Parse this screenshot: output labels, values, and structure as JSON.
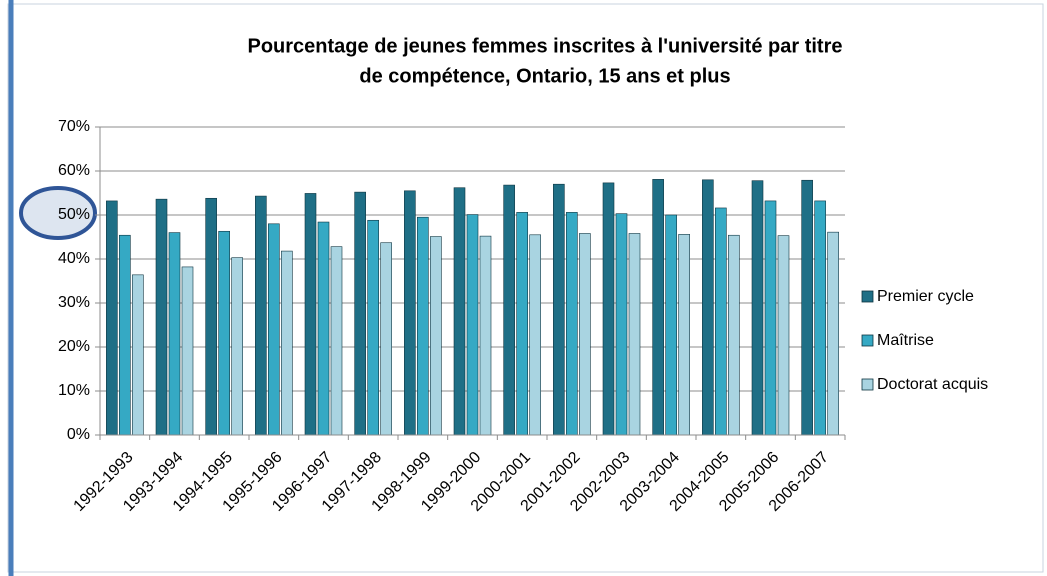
{
  "chart_data": {
    "type": "bar",
    "title_lines": [
      "Pourcentage de jeunes femmes inscrites à l'université par titre",
      "de compétence, Ontario, 15 ans et plus"
    ],
    "categories": [
      "1992-1993",
      "1993-1994",
      "1994-1995",
      "1995-1996",
      "1996-1997",
      "1997-1998",
      "1998-1999",
      "1999-2000",
      "2000-2001",
      "2001-2002",
      "2002-2003",
      "2003-2004",
      "2004-2005",
      "2005-2006",
      "2006-2007"
    ],
    "series": [
      {
        "name": "Premier cycle",
        "color": "#1f6f86",
        "values": [
          53.2,
          53.6,
          53.8,
          54.3,
          54.9,
          55.2,
          55.5,
          56.2,
          56.8,
          57.0,
          57.3,
          58.1,
          58.0,
          57.8,
          57.9
        ]
      },
      {
        "name": "Maîtrise",
        "color": "#35a9c4",
        "values": [
          45.4,
          46.0,
          46.3,
          48.0,
          48.4,
          48.8,
          49.5,
          50.1,
          50.6,
          50.6,
          50.3,
          50.0,
          51.6,
          53.2,
          53.2
        ]
      },
      {
        "name": "Doctorat acquis",
        "color": "#a9d4e1",
        "values": [
          36.4,
          38.2,
          40.3,
          41.8,
          42.8,
          43.7,
          45.1,
          45.2,
          45.5,
          45.8,
          45.8,
          45.6,
          45.4,
          45.3,
          46.1
        ]
      }
    ],
    "ylim": [
      0,
      70
    ],
    "yticks": [
      {
        "value": 0,
        "label": "0%"
      },
      {
        "value": 10,
        "label": "10%"
      },
      {
        "value": 20,
        "label": "20%"
      },
      {
        "value": 30,
        "label": "30%"
      },
      {
        "value": 40,
        "label": "40%"
      },
      {
        "value": 50,
        "label": "50%"
      },
      {
        "value": 60,
        "label": "60%"
      },
      {
        "value": 70,
        "label": "70%"
      }
    ],
    "grid": true,
    "legend": "right"
  }
}
